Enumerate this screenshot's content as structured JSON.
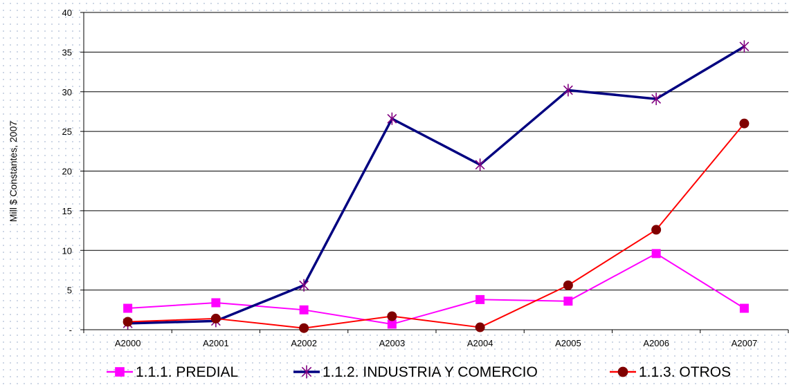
{
  "chart_data": {
    "type": "line",
    "title": "",
    "xlabel": "",
    "ylabel": "Mill $ Constantes, 2007",
    "categories": [
      "A2000",
      "A2001",
      "A2002",
      "A2003",
      "A2004",
      "A2005",
      "A2006",
      "A2007"
    ],
    "ylim": [
      0,
      40
    ],
    "yticks": [
      0,
      5,
      10,
      15,
      20,
      25,
      30,
      35,
      40
    ],
    "ytick_labels": [
      "-",
      "5",
      "10",
      "15",
      "20",
      "25",
      "30",
      "35",
      "40"
    ],
    "grid": true,
    "legend": "bottom",
    "series": [
      {
        "name": "1.1.1. PREDIAL",
        "color": "#ff00ff",
        "marker": "square",
        "values": [
          2.7,
          3.4,
          2.5,
          0.7,
          3.8,
          3.6,
          9.6,
          2.7
        ]
      },
      {
        "name": "1.1.2. INDUSTRIA Y COMERCIO",
        "color": "#000080",
        "marker_color": "#800080",
        "marker": "star",
        "values": [
          0.8,
          1.1,
          5.6,
          26.6,
          20.8,
          30.2,
          29.1,
          35.7
        ]
      },
      {
        "name": "1.1.3. OTROS",
        "color": "#ff0000",
        "marker_color": "#800000",
        "marker": "circle",
        "values": [
          1.0,
          1.4,
          0.2,
          1.7,
          0.3,
          5.6,
          12.6,
          26.0
        ]
      }
    ]
  }
}
